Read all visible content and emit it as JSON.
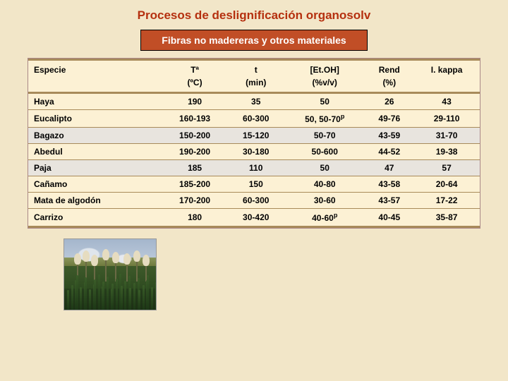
{
  "title": "Procesos de deslignificación organosolv",
  "subtitle": "Fibras no madereras y otros materiales",
  "columns": {
    "c0": "Especie",
    "c1_top": "Tª",
    "c1_bot": "(ºC)",
    "c2_top": "t",
    "c2_bot": "(min)",
    "c3_top": "[Et.OH]",
    "c3_bot": "(%v/v)",
    "c4_top": "Rend",
    "c4_bot": "(%)",
    "c5_top": "I. kappa",
    "c5_bot": ""
  },
  "rows": [
    {
      "especie": "Haya",
      "t": "190",
      "min": "35",
      "etoh": "50",
      "rend": "26",
      "kappa": "43",
      "shade": false
    },
    {
      "especie": "Eucalipto",
      "t": "160-193",
      "min": "60-300",
      "etoh": "50, 50-70",
      "sup": "p",
      "rend": "49-76",
      "kappa": "29-110",
      "shade": false
    },
    {
      "especie": "Bagazo",
      "t": "150-200",
      "min": "15-120",
      "etoh": "50-70",
      "rend": "43-59",
      "kappa": "31-70",
      "shade": true
    },
    {
      "especie": "Abedul",
      "t": "190-200",
      "min": "30-180",
      "etoh": "50-600",
      "rend": "44-52",
      "kappa": "19-38",
      "shade": false
    },
    {
      "especie": "Paja",
      "t": "185",
      "min": "110",
      "etoh": "50",
      "rend": "47",
      "kappa": "57",
      "shade": true
    },
    {
      "especie": "Cañamo",
      "t": "185-200",
      "min": "150",
      "etoh": "40-80",
      "rend": "43-58",
      "kappa": "20-64",
      "shade": false
    },
    {
      "especie": "Mata de algodón",
      "t": "170-200",
      "min": "60-300",
      "etoh": "30-60",
      "rend": "43-57",
      "kappa": "17-22",
      "shade": false
    },
    {
      "especie": "Carrizo",
      "t": "180",
      "min": "30-420",
      "etoh": "40-60",
      "sup": "p",
      "rend": "40-45",
      "kappa": "35-87",
      "shade": false
    }
  ]
}
